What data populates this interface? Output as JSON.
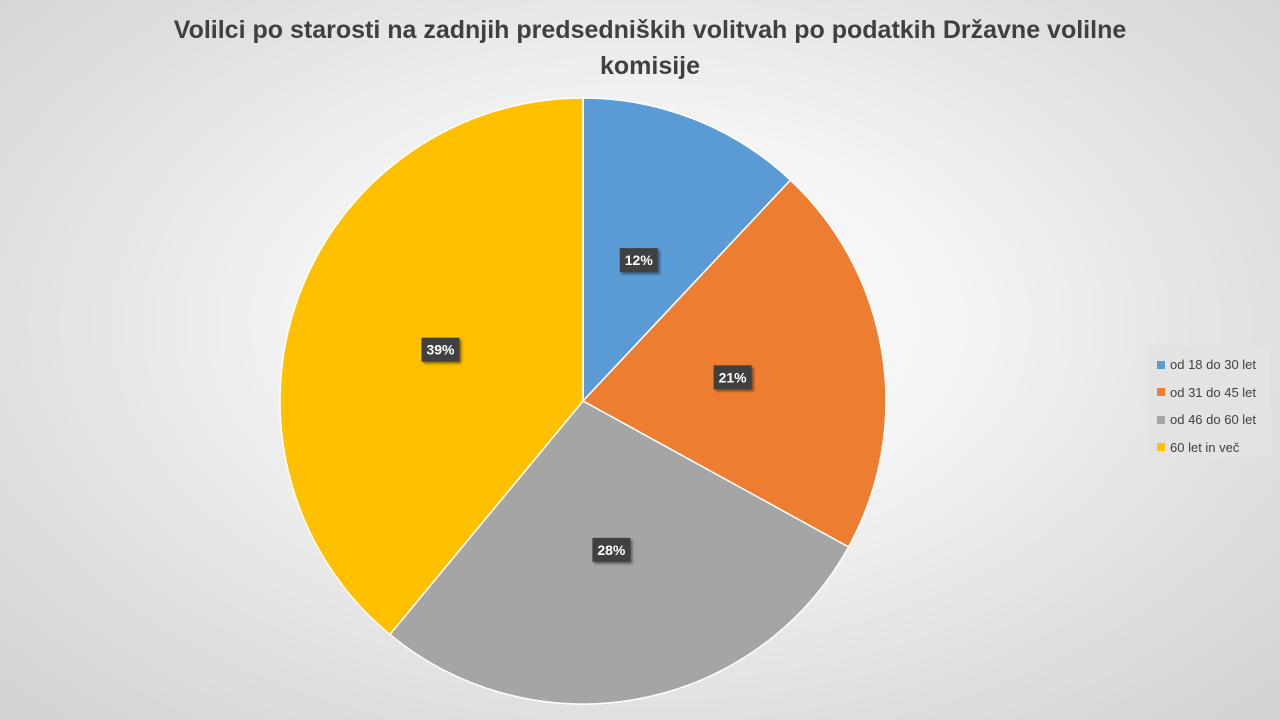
{
  "chart_data": {
    "type": "pie",
    "title": "Volilci po starosti na zadnjih predsedniških volitvah po podatkih Državne volilne komisije",
    "categories": [
      "od 18 do 30 let",
      "od 31 do 45 let",
      "od 46 do 60 let",
      "60 let in več"
    ],
    "values": [
      12,
      21,
      28,
      39
    ],
    "data_labels": [
      "12%",
      "21%",
      "28%",
      "39%"
    ],
    "colors": [
      "#5b9bd5",
      "#ed7d31",
      "#a5a5a5",
      "#ffc000"
    ],
    "legend_position": "right",
    "start_angle": "top",
    "direction": "clockwise"
  }
}
